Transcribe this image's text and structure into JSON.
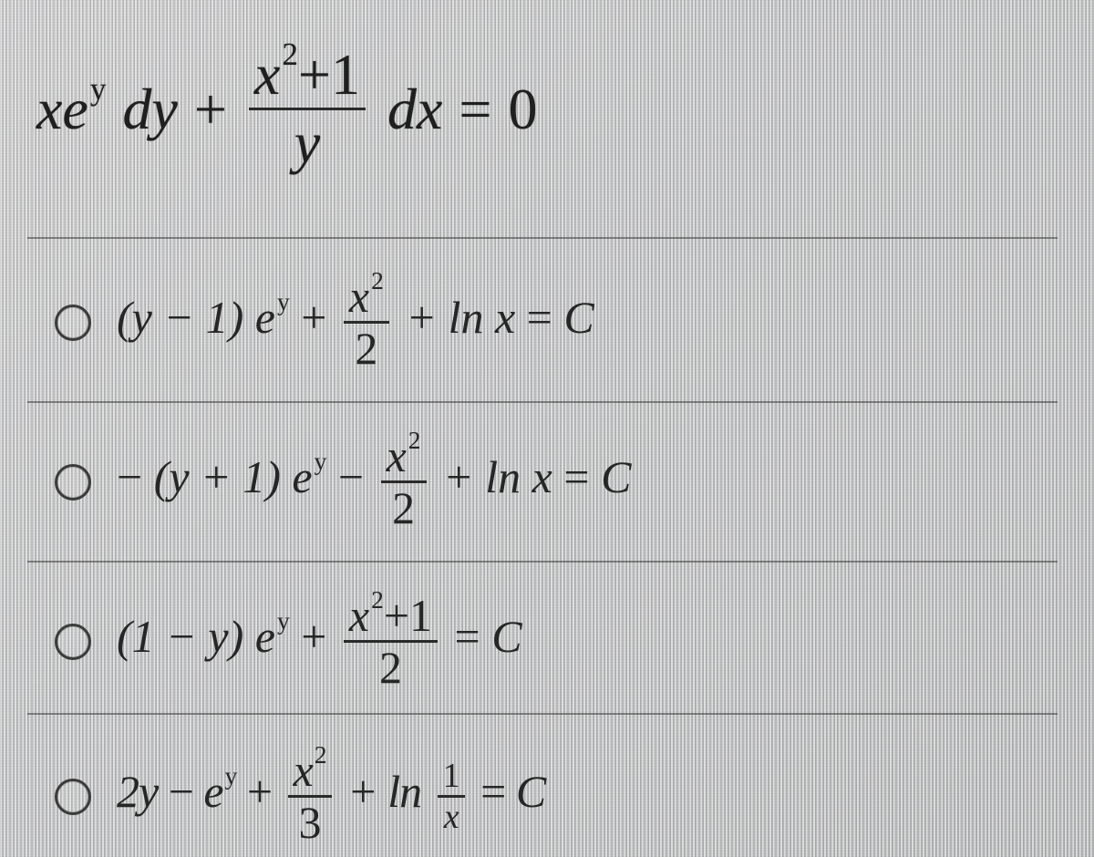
{
  "type": "multiple-choice-math",
  "background_color": "#c2c3c4",
  "text_color": "#2a2a2a",
  "rule_color": "#3a3a3a",
  "question": {
    "fontsize_pt": 48,
    "parts": {
      "t1": "xe",
      "t1_exp": "y",
      "t2": "dy",
      "plus": "+",
      "frac_num_a": "x",
      "frac_num_a_exp": "2",
      "frac_num_plus": "+1",
      "frac_den": "y",
      "t3": "dx",
      "eq": "=",
      "zero": "0"
    }
  },
  "options": {
    "fontsize_pt": 38,
    "a": {
      "p1": "(y − 1) e",
      "p1_exp": "y",
      "plus1": "+",
      "frac_num": "x",
      "frac_num_exp": "2",
      "frac_den": "2",
      "plus2": "+ ln x",
      "eq": "=",
      "rhs": "C"
    },
    "b": {
      "lead": "−",
      "p1": "(y + 1) e",
      "p1_exp": "y",
      "minus": "−",
      "frac_num": "x",
      "frac_num_exp": "2",
      "frac_den": "2",
      "plus2": "+ ln x",
      "eq": "=",
      "rhs": "C"
    },
    "c": {
      "p1": "(1 − y) e",
      "p1_exp": "y",
      "plus1": "+",
      "frac_num_a": "x",
      "frac_num_a_exp": "2",
      "frac_num_plus": "+1",
      "frac_den": "2",
      "eq": "=",
      "rhs": "C"
    },
    "d": {
      "p1": "2y",
      "minus": "−",
      "p2": "e",
      "p2_exp": "y",
      "plus1": "+",
      "frac_num": "x",
      "frac_num_exp": "2",
      "frac_den": "3",
      "plus2": "+ ln",
      "smallfrac_num": "1",
      "smallfrac_den": "x",
      "eq": "=",
      "rhs": "C"
    }
  }
}
